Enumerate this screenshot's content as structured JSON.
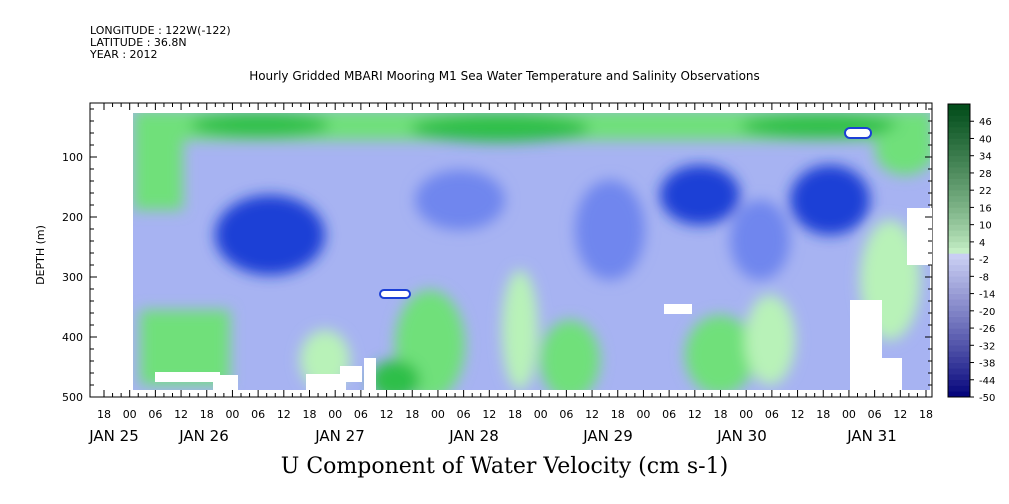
{
  "header": {
    "longitude": "LONGITUDE : 122W(-122)",
    "latitude": "LATITUDE : 36.8N",
    "year": "YEAR : 2012"
  },
  "title": "Hourly Gridded MBARI Mooring M1 Sea Water Temperature and Salinity Observations",
  "bottom_title": "U Component of Water Velocity (cm s-1)",
  "colors": {
    "strong_negative": "#1b3fd6",
    "medium_negative": "#6f86ee",
    "weak_negative": "#a7b3f2",
    "weak_positive": "#b8f2b8",
    "medium_positive": "#6fe07a",
    "strong_positive": "#2fbf4a",
    "missing": "#ffffff"
  },
  "chart_data": {
    "type": "heatmap",
    "variable": "U Component of Water Velocity (cm s-1)",
    "ylabel": "DEPTH (m)",
    "ylim": [
      500,
      10
    ],
    "y_reversed": true,
    "y_ticks": [
      100,
      200,
      300,
      400,
      500
    ],
    "x_hour_ticks": [
      "18",
      "00",
      "06",
      "12",
      "18",
      "00",
      "06",
      "12",
      "18",
      "00",
      "06",
      "12",
      "18",
      "00",
      "06",
      "12",
      "18",
      "00",
      "06",
      "12",
      "18",
      "00",
      "06",
      "12",
      "18",
      "00",
      "06",
      "12",
      "18",
      "00",
      "06",
      "12",
      "18"
    ],
    "x_date_labels": [
      "JAN 25",
      "JAN 26",
      "JAN 27",
      "JAN 28",
      "JAN 29",
      "JAN 30",
      "JAN 31"
    ],
    "colorbar_labels": [
      46,
      40,
      34,
      28,
      22,
      16,
      10,
      4,
      -2,
      -8,
      -14,
      -20,
      -26,
      -32,
      -38,
      -44,
      -50
    ],
    "colorbar_range": [
      -50,
      52
    ],
    "colorbar_step": 2
  }
}
